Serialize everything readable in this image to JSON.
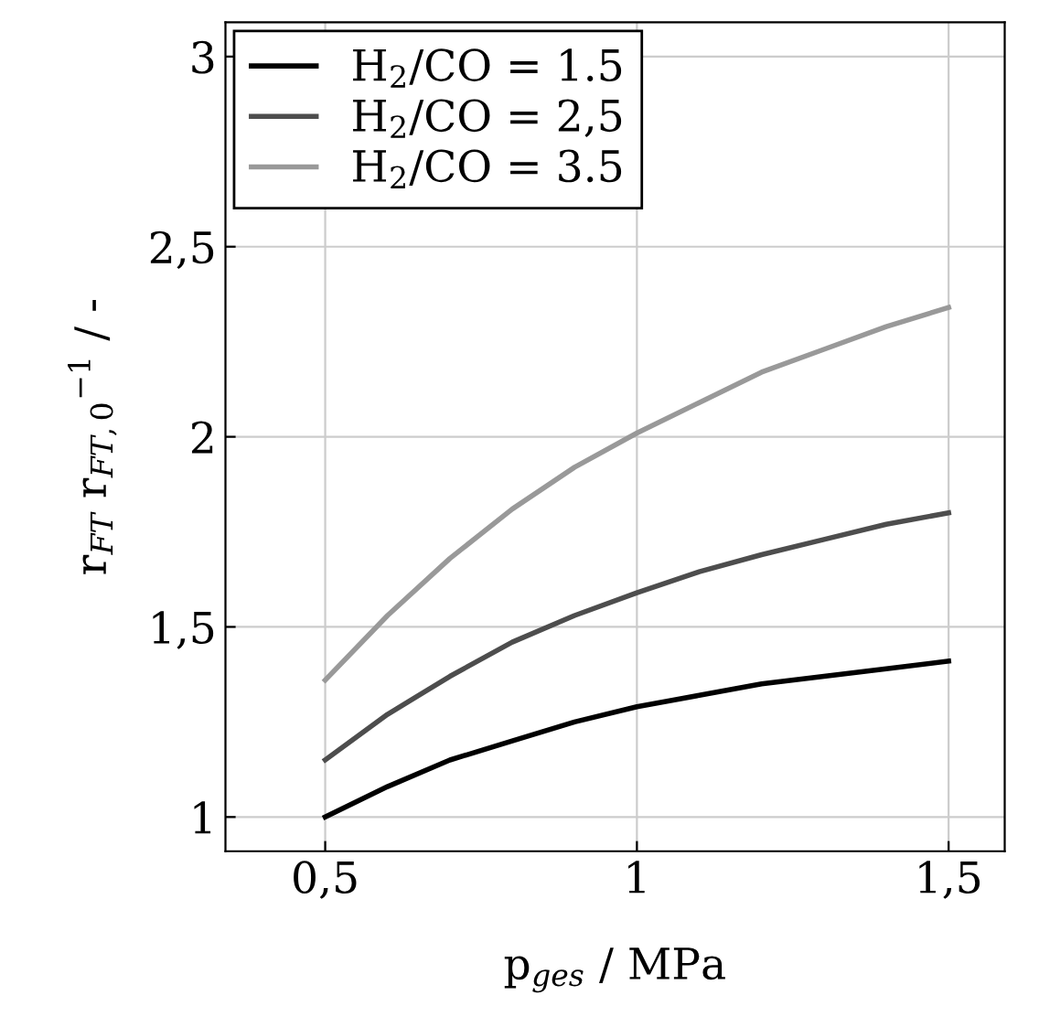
{
  "chart_data": {
    "type": "line",
    "xlabel": "p$_{ges}$ / MPa",
    "ylabel": "r$_{FT}$ r$_{FT,0}$$^{−1}$ / -",
    "x": [
      0.5,
      0.6,
      0.7,
      0.8,
      0.9,
      1.0,
      1.1,
      1.2,
      1.3,
      1.4,
      1.5
    ],
    "series": [
      {
        "name": "H$_{2}$/CO = 1.5",
        "color": "#000000",
        "values": [
          1.0,
          1.08,
          1.15,
          1.2,
          1.25,
          1.29,
          1.32,
          1.35,
          1.37,
          1.39,
          1.41
        ]
      },
      {
        "name": "H$_{2}$/CO = 2,5",
        "color": "#4d4d4d",
        "values": [
          1.15,
          1.27,
          1.37,
          1.46,
          1.53,
          1.59,
          1.645,
          1.69,
          1.73,
          1.77,
          1.8
        ]
      },
      {
        "name": "H$_{2}$/CO = 3.5",
        "color": "#999999",
        "values": [
          1.36,
          1.53,
          1.68,
          1.81,
          1.92,
          2.01,
          2.09,
          2.17,
          2.23,
          2.29,
          2.34
        ]
      }
    ],
    "xlim": [
      0.34,
      1.59
    ],
    "ylim": [
      0.91,
      3.09
    ],
    "xticks": [
      {
        "value": 0.5,
        "label": "0,5"
      },
      1,
      {
        "value": 1.5,
        "label": "1,5"
      }
    ],
    "yticks": [
      1,
      {
        "value": 1.5,
        "label": "1,5"
      },
      2,
      {
        "value": 2.5,
        "label": "2,5"
      },
      3
    ],
    "grid": true,
    "legend": "top left",
    "marker": "none",
    "line_style": "solid"
  }
}
